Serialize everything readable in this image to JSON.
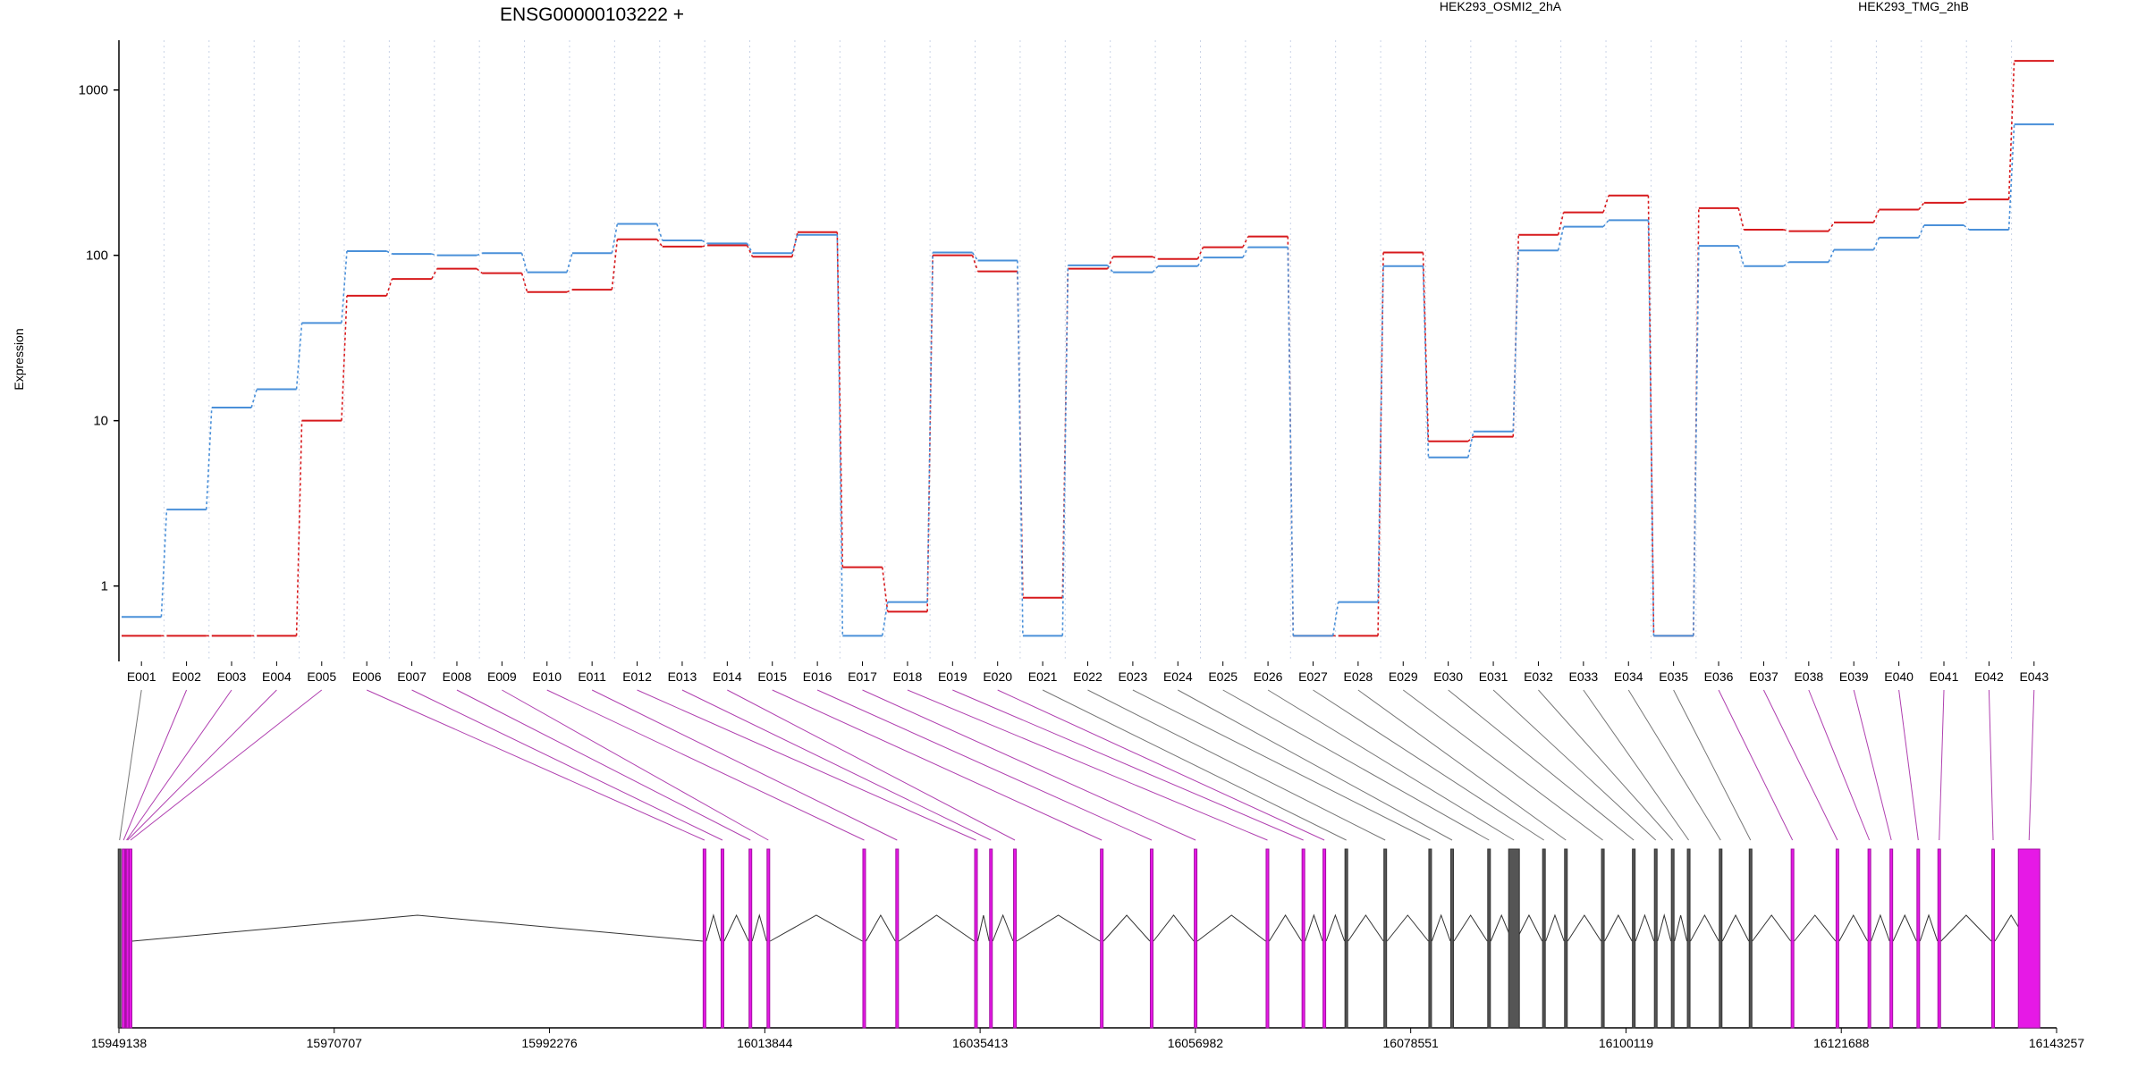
{
  "chart_data": {
    "type": "line",
    "title": "ENSG00000103222 +",
    "xlabel": "",
    "ylabel": "Expression",
    "yscale": "log",
    "ylim": [
      0.35,
      2000
    ],
    "y_ticks": [
      1,
      10,
      100,
      1000
    ],
    "y_tick_labels": [
      "1",
      "10",
      "100",
      "1000"
    ],
    "grid": "vertical dotted lines at exon boundaries",
    "legend_placement": "top",
    "colors": {
      "HEK293_OSMI2_2hA": "#d7191c",
      "HEK293_TMG_2hB": "#4a90d9",
      "exon_default": "#555555",
      "exon_highlight": "#e619e6",
      "connector_highlight": "#b040b0",
      "connector_default": "#777777"
    },
    "categories": [
      "E001",
      "E002",
      "E003",
      "E004",
      "E005",
      "E006",
      "E007",
      "E008",
      "E009",
      "E010",
      "E011",
      "E012",
      "E013",
      "E014",
      "E015",
      "E016",
      "E017",
      "E018",
      "E019",
      "E020",
      "E021",
      "E022",
      "E023",
      "E024",
      "E025",
      "E026",
      "E027",
      "E028",
      "E029",
      "E030",
      "E031",
      "E032",
      "E033",
      "E034",
      "E035",
      "E036",
      "E037",
      "E038",
      "E039",
      "E040",
      "E041",
      "E042",
      "E043"
    ],
    "series": [
      {
        "name": "HEK293_OSMI2_2hA",
        "color": "#d7191c",
        "values": [
          0.5,
          0.5,
          0.5,
          0.5,
          10,
          57,
          72,
          83,
          78,
          60,
          62,
          125,
          113,
          115,
          98,
          138,
          1.3,
          0.7,
          100,
          80,
          0.85,
          83,
          98,
          95,
          112,
          130,
          0.5,
          0.5,
          104,
          7.5,
          8,
          133,
          182,
          230,
          0.5,
          193,
          143,
          140,
          158,
          189,
          208,
          218,
          1500
        ]
      },
      {
        "name": "HEK293_TMG_2hB",
        "color": "#4a90d9",
        "values": [
          0.65,
          2.9,
          12,
          15.5,
          39,
          106,
          102,
          100,
          103,
          79,
          103,
          155,
          123,
          118,
          103,
          133,
          0.5,
          0.8,
          104,
          93,
          0.5,
          87,
          79,
          86,
          97,
          112,
          0.5,
          0.8,
          86,
          6,
          8.6,
          107,
          149,
          163,
          0.5,
          114,
          86,
          91,
          108,
          128,
          152,
          143,
          620
        ]
      }
    ],
    "gene_model": {
      "genomic_ticks": [
        "15949138",
        "15970707",
        "15992276",
        "16013844",
        "16035413",
        "16056982",
        "16078551",
        "16100119",
        "16121688",
        "16143257"
      ],
      "genomic_range": [
        15949138,
        16143257
      ],
      "exon_positions": [
        15949200,
        15949600,
        15949900,
        15950000,
        15950300,
        16007800,
        16009600,
        16012400,
        16014200,
        16023800,
        16027100,
        16035000,
        16036500,
        16038900,
        16047600,
        16052600,
        16057000,
        16064200,
        16067800,
        16069900,
        16072100,
        16076000,
        16080500,
        16082700,
        16086400,
        16088900,
        16091900,
        16094100,
        16097800,
        16100900,
        16103100,
        16104800,
        16106400,
        16109600,
        16112600,
        16116800,
        16121300,
        16124500,
        16126700,
        16129400,
        16131500,
        16136900,
        16140500
      ],
      "highlighted_exons": [
        "E002",
        "E003",
        "E004",
        "E005",
        "E006",
        "E007",
        "E008",
        "E009",
        "E010",
        "E011",
        "E012",
        "E013",
        "E014",
        "E015",
        "E016",
        "E017",
        "E018",
        "E019",
        "E020",
        "E036",
        "E037",
        "E038",
        "E039",
        "E040",
        "E041",
        "E042",
        "E043"
      ]
    }
  }
}
